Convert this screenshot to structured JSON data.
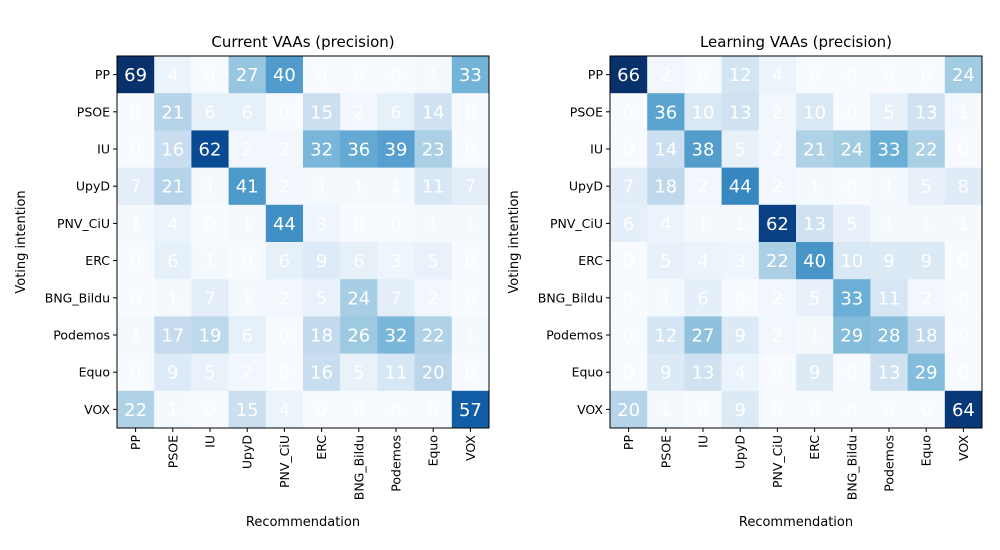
{
  "chart_data": [
    {
      "type": "heatmap",
      "title": "Current VAAs (precision)",
      "xlabel": "Recommendation",
      "ylabel": "Voting intention",
      "x_categories": [
        "PP",
        "PSOE",
        "IU",
        "UpyD",
        "PNV_CiU",
        "ERC",
        "BNG_Bildu",
        "Podemos",
        "Equo",
        "VOX"
      ],
      "y_categories": [
        "PP",
        "PSOE",
        "IU",
        "UpyD",
        "PNV_CiU",
        "ERC",
        "BNG_Bildu",
        "Podemos",
        "Equo",
        "VOX"
      ],
      "colormap": "Blues",
      "grid": false,
      "values": [
        [
          69,
          4,
          0,
          27,
          40,
          0,
          0,
          0,
          1,
          33
        ],
        [
          0,
          21,
          6,
          6,
          0,
          15,
          2,
          6,
          14,
          0
        ],
        [
          0,
          16,
          62,
          2,
          2,
          32,
          36,
          39,
          23,
          0
        ],
        [
          7,
          21,
          1,
          41,
          2,
          1,
          1,
          1,
          11,
          7
        ],
        [
          1,
          4,
          0,
          1,
          44,
          3,
          0,
          0,
          1,
          1
        ],
        [
          0,
          6,
          1,
          0,
          6,
          9,
          6,
          3,
          5,
          0
        ],
        [
          0,
          1,
          7,
          1,
          2,
          5,
          24,
          7,
          2,
          0
        ],
        [
          1,
          17,
          19,
          6,
          0,
          18,
          26,
          32,
          22,
          1
        ],
        [
          0,
          9,
          5,
          2,
          0,
          16,
          5,
          11,
          20,
          0
        ],
        [
          22,
          1,
          0,
          15,
          4,
          0,
          0,
          0,
          0,
          57
        ]
      ]
    },
    {
      "type": "heatmap",
      "title": "Learning VAAs (precision)",
      "xlabel": "Recommendation",
      "ylabel": "Voting intention",
      "x_categories": [
        "PP",
        "PSOE",
        "IU",
        "UpyD",
        "PNV_CiU",
        "ERC",
        "BNG_Bildu",
        "Podemos",
        "Equo",
        "VOX"
      ],
      "y_categories": [
        "PP",
        "PSOE",
        "IU",
        "UpyD",
        "PNV_CiU",
        "ERC",
        "BNG_Bildu",
        "Podemos",
        "Equo",
        "VOX"
      ],
      "colormap": "Blues",
      "grid": false,
      "values": [
        [
          66,
          2,
          0,
          12,
          4,
          0,
          0,
          0,
          0,
          24
        ],
        [
          0,
          36,
          10,
          13,
          2,
          10,
          0,
          5,
          13,
          1
        ],
        [
          0,
          14,
          38,
          5,
          2,
          21,
          24,
          33,
          22,
          0
        ],
        [
          7,
          18,
          2,
          44,
          2,
          1,
          0,
          1,
          5,
          8
        ],
        [
          6,
          4,
          1,
          1,
          62,
          13,
          5,
          1,
          1,
          1
        ],
        [
          0,
          5,
          4,
          3,
          22,
          40,
          10,
          9,
          9,
          0
        ],
        [
          0,
          1,
          6,
          0,
          2,
          5,
          33,
          11,
          2,
          0
        ],
        [
          0,
          12,
          27,
          9,
          2,
          1,
          29,
          28,
          18,
          0
        ],
        [
          0,
          9,
          13,
          4,
          0,
          9,
          0,
          13,
          29,
          0
        ],
        [
          20,
          1,
          0,
          9,
          0,
          0,
          0,
          0,
          0,
          64
        ]
      ]
    }
  ]
}
